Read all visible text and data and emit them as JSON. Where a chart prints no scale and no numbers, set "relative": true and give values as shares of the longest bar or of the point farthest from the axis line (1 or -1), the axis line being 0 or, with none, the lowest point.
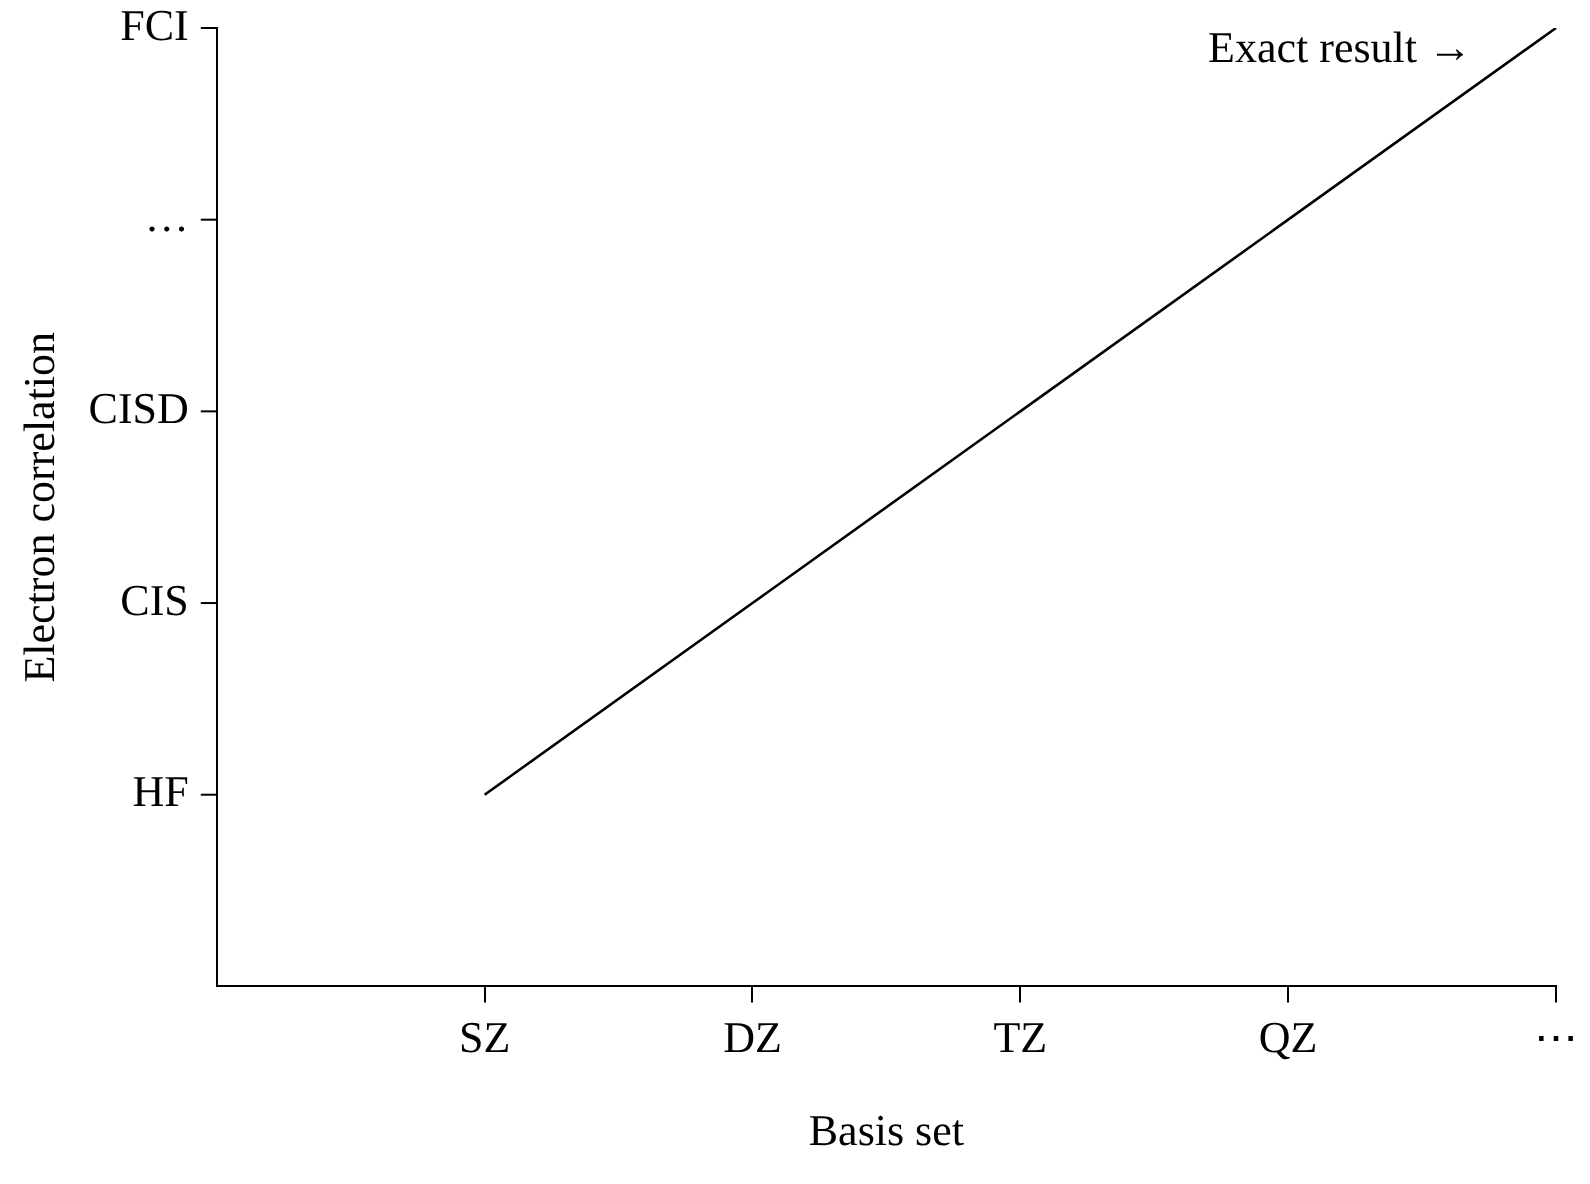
{
  "chart_data": {
    "type": "line",
    "xlabel": "Basis set",
    "ylabel": "Electron correlation",
    "categories": [
      null,
      "SZ",
      "DZ",
      "TZ",
      "QZ",
      "⋯"
    ],
    "relative": true,
    "series": [
      {
        "color": "#000000",
        "values": [
          null,
          0.2,
          0.4,
          0.6,
          0.8,
          1
        ]
      }
    ],
    "annotations": [
      "HF",
      "CIS",
      "CISD",
      "…",
      "FCI",
      {
        "text": "Exact result →",
        "x": "⋯",
        "y": 1
      }
    ],
    "grid": false,
    "legend": false,
    "marker": "none"
  }
}
